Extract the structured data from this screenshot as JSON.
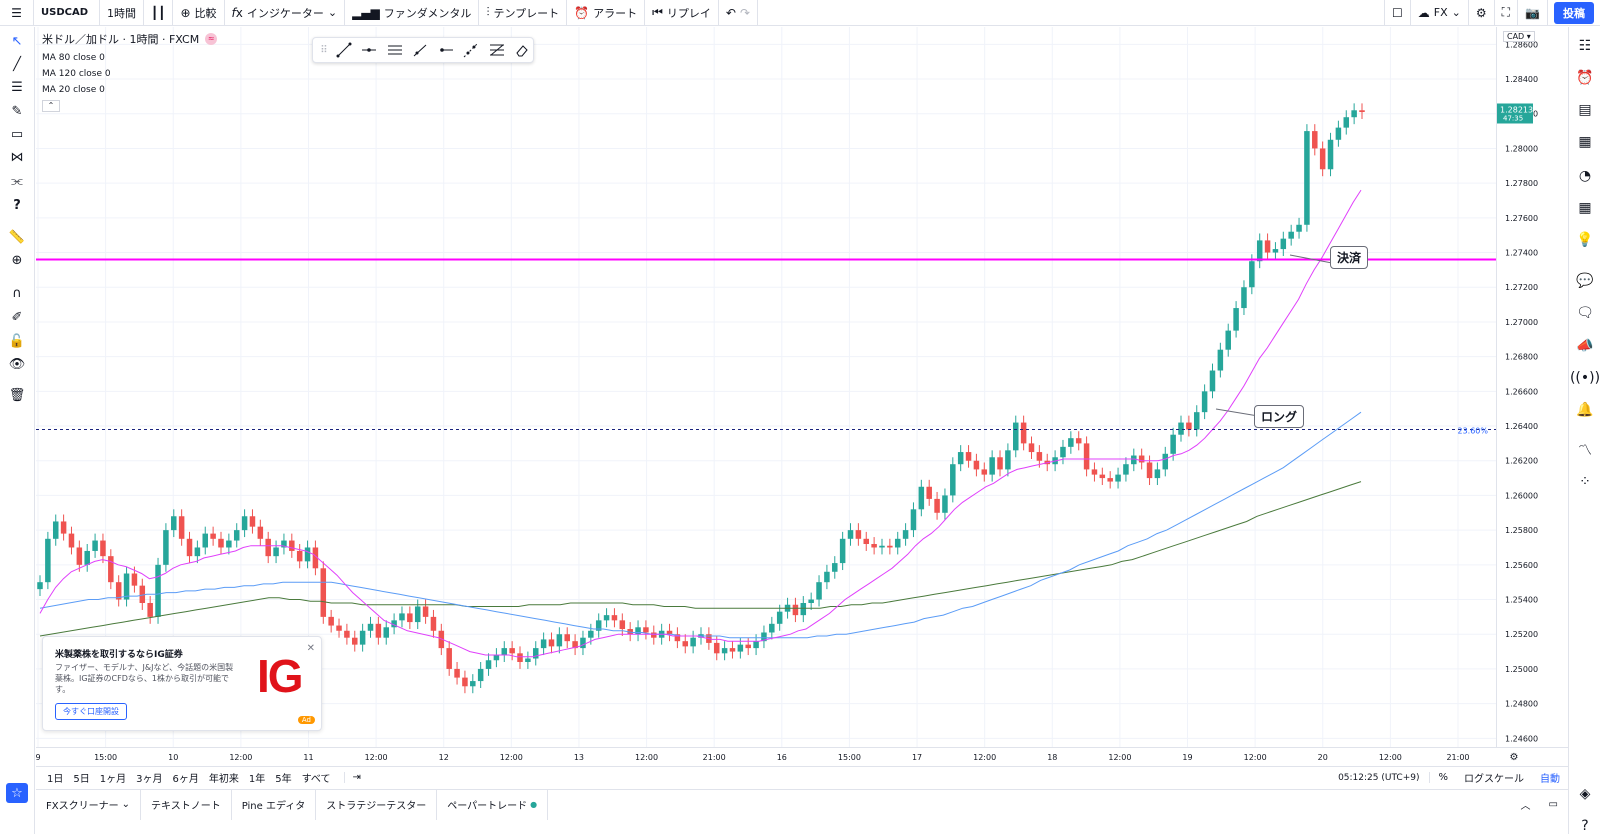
{
  "toolbar": {
    "symbol": "USDCAD",
    "interval": "1時間",
    "compare": "比較",
    "indicators": "インジケーター",
    "fundamentals": "ファンダメンタル",
    "templates": "テンプレート",
    "alerts": "アラート",
    "replay": "リプレイ",
    "layout_label": "FX",
    "publish": "投稿"
  },
  "legend": {
    "title": "米ドル／加ドル · 1時間 · FXCM",
    "ma1": "MA 80 close 0",
    "ma2": "MA 120 close 0",
    "ma3": "MA 20 close 0"
  },
  "price_axis": {
    "currency": "CAD",
    "ticks": [
      "1.28600",
      "1.28400",
      "1.28200",
      "1.28000",
      "1.27800",
      "1.27600",
      "1.27400",
      "1.27200",
      "1.27000",
      "1.26800",
      "1.26600",
      "1.26400",
      "1.26200",
      "1.26000",
      "1.25800",
      "1.25600",
      "1.25400",
      "1.25200",
      "1.25000",
      "1.24800",
      "1.24600"
    ],
    "last_price": "1.28213",
    "countdown": "47:35"
  },
  "time_axis": {
    "ticks": [
      "9",
      "15:00",
      "10",
      "12:00",
      "11",
      "12:00",
      "12",
      "12:00",
      "13",
      "12:00",
      "21:00",
      "16",
      "15:00",
      "17",
      "12:00",
      "18",
      "12:00",
      "19",
      "12:00",
      "20",
      "12:00",
      "21:00"
    ]
  },
  "annotations": {
    "close_label": "決済",
    "long_label": "ロング",
    "fib_label": "23.60%"
  },
  "ad": {
    "title": "米製薬株を取引するならIG証券",
    "body": "ファイザー、モデルナ、J&Jなど、今話題の米国製薬株。IG証券のCFDなら、1株から取引が可能です。",
    "button": "今すぐ口座開設",
    "logo": "IG",
    "badge": "Ad"
  },
  "ranges": [
    "1日",
    "5日",
    "1ヶ月",
    "3ヶ月",
    "6ヶ月",
    "年初来",
    "1年",
    "5年",
    "すべて"
  ],
  "status": {
    "clock": "05:12:25 (UTC+9)",
    "percent": "%",
    "log": "ログスケール",
    "auto": "自動"
  },
  "bottom_tabs": [
    "FXスクリーナー",
    "テキストノート",
    "Pine エディタ",
    "ストラテジーテスター",
    "ペーパートレード"
  ],
  "colors": {
    "up": "#26a69a",
    "down": "#ef5350",
    "ma20": "#e040fb",
    "ma80": "#5b9cf6",
    "ma120": "#4a7a3c",
    "hline": "#ff00ff",
    "accent": "#2962ff"
  },
  "chart_data": {
    "type": "candlestick",
    "ylim": [
      1.2455,
      1.287
    ],
    "hline": 1.2736,
    "fib_level": 1.2638,
    "closes": [
      1.255,
      1.2575,
      1.2585,
      1.2578,
      1.257,
      1.256,
      1.2568,
      1.2574,
      1.2565,
      1.255,
      1.254,
      1.2555,
      1.2548,
      1.2538,
      1.253,
      1.256,
      1.258,
      1.2588,
      1.2575,
      1.2565,
      1.257,
      1.2578,
      1.2575,
      1.257,
      1.2574,
      1.258,
      1.2588,
      1.2582,
      1.2575,
      1.2565,
      1.257,
      1.2574,
      1.2568,
      1.2562,
      1.257,
      1.2558,
      1.253,
      1.2525,
      1.2522,
      1.2518,
      1.2514,
      1.2522,
      1.2526,
      1.2518,
      1.2524,
      1.2528,
      1.2532,
      1.2527,
      1.2536,
      1.253,
      1.2522,
      1.2512,
      1.25,
      1.2495,
      1.249,
      1.2493,
      1.25,
      1.2505,
      1.2508,
      1.2512,
      1.2509,
      1.2504,
      1.2506,
      1.2512,
      1.2517,
      1.2513,
      1.252,
      1.2516,
      1.2512,
      1.2518,
      1.2522,
      1.2528,
      1.2531,
      1.2528,
      1.2523,
      1.252,
      1.2524,
      1.2521,
      1.2518,
      1.2522,
      1.252,
      1.2516,
      1.2513,
      1.2518,
      1.252,
      1.2515,
      1.2509,
      1.2512,
      1.251,
      1.2514,
      1.2512,
      1.2516,
      1.2521,
      1.2526,
      1.2533,
      1.2537,
      1.2531,
      1.2538,
      1.254,
      1.255,
      1.2556,
      1.2561,
      1.2575,
      1.258,
      1.2575,
      1.2572,
      1.257,
      1.2571,
      1.257,
      1.2575,
      1.258,
      1.2592,
      1.2605,
      1.2598,
      1.259,
      1.26,
      1.2618,
      1.2625,
      1.262,
      1.2615,
      1.2612,
      1.2622,
      1.2615,
      1.2626,
      1.2642,
      1.263,
      1.2625,
      1.262,
      1.2618,
      1.2622,
      1.2628,
      1.2633,
      1.263,
      1.2615,
      1.2612,
      1.261,
      1.2608,
      1.2612,
      1.2618,
      1.2623,
      1.2619,
      1.261,
      1.2615,
      1.2624,
      1.2635,
      1.2642,
      1.2638,
      1.2648,
      1.266,
      1.2672,
      1.2684,
      1.2695,
      1.2708,
      1.272,
      1.2735,
      1.2747,
      1.274,
      1.2742,
      1.2748,
      1.2752,
      1.2756,
      1.281,
      1.28,
      1.2788,
      1.2805,
      1.2812,
      1.2818,
      1.2822,
      1.2821
    ],
    "ma20": [
      1.2532,
      1.254,
      1.2547,
      1.2552,
      1.2556,
      1.2558,
      1.256,
      1.2562,
      1.2563,
      1.2562,
      1.256,
      1.2559,
      1.2557,
      1.2555,
      1.2552,
      1.2553,
      1.2555,
      1.2558,
      1.256,
      1.2561,
      1.2562,
      1.2564,
      1.2565,
      1.2566,
      1.2567,
      1.2568,
      1.257,
      1.2571,
      1.2571,
      1.2571,
      1.2571,
      1.2571,
      1.257,
      1.2569,
      1.2568,
      1.2566,
      1.2562,
      1.2558,
      1.2554,
      1.2549,
      1.2544,
      1.254,
      1.2536,
      1.2532,
      1.2528,
      1.2526,
      1.2524,
      1.2522,
      1.2521,
      1.252,
      1.2519,
      1.2518,
      1.2516,
      1.2514,
      1.2512,
      1.251,
      1.2509,
      1.2508,
      1.2508,
      1.2508,
      1.2508,
      1.2507,
      1.2507,
      1.2507,
      1.2508,
      1.2509,
      1.251,
      1.2511,
      1.2512,
      1.2513,
      1.2515,
      1.2517,
      1.2518,
      1.2519,
      1.252,
      1.252,
      1.252,
      1.252,
      1.252,
      1.252,
      1.252,
      1.2519,
      1.2519,
      1.2519,
      1.2519,
      1.2518,
      1.2517,
      1.2517,
      1.2516,
      1.2516,
      1.2516,
      1.2516,
      1.2516,
      1.2517,
      1.2518,
      1.2519,
      1.252,
      1.2522,
      1.2523,
      1.2526,
      1.2529,
      1.2532,
      1.2536,
      1.254,
      1.2543,
      1.2546,
      1.2549,
      1.2552,
      1.2555,
      1.2558,
      1.2562,
      1.2566,
      1.2571,
      1.2575,
      1.2578,
      1.2582,
      1.2587,
      1.2592,
      1.2596,
      1.2599,
      1.2602,
      1.2605,
      1.2607,
      1.261,
      1.2613,
      1.2615,
      1.2616,
      1.2617,
      1.2618,
      1.2619,
      1.262,
      1.2621,
      1.2621,
      1.2621,
      1.2621,
      1.2621,
      1.2621,
      1.2621,
      1.2621,
      1.2621,
      1.2621,
      1.262,
      1.262,
      1.262,
      1.2621,
      1.2623,
      1.2624,
      1.2626,
      1.2629,
      1.2633,
      1.2638,
      1.2643,
      1.2649,
      1.2656,
      1.2663,
      1.2671,
      1.2679,
      1.2685,
      1.2692,
      1.2699,
      1.2706,
      1.2713,
      1.2722,
      1.273,
      1.2737,
      1.2745,
      1.2753,
      1.2761,
      1.2769,
      1.2776
    ],
    "ma80": [
      1.2535,
      1.2536,
      1.2537,
      1.2538,
      1.2539,
      1.254,
      1.254,
      1.2541,
      1.2541,
      1.2542,
      1.2542,
      1.2543,
      1.2543,
      1.2544,
      1.2544,
      1.2545,
      1.2545,
      1.2546,
      1.2546,
      1.2547,
      1.2547,
      1.2548,
      1.2548,
      1.2549,
      1.2549,
      1.255,
      1.255,
      1.255,
      1.255,
      1.255,
      1.255,
      1.2549,
      1.2548,
      1.2547,
      1.2546,
      1.2545,
      1.2544,
      1.2543,
      1.2542,
      1.2541,
      1.254,
      1.2539,
      1.2538,
      1.2537,
      1.2536,
      1.2535,
      1.2534,
      1.2533,
      1.2532,
      1.2531,
      1.253,
      1.2529,
      1.2528,
      1.2527,
      1.2526,
      1.2525,
      1.2524,
      1.2523,
      1.2523,
      1.2522,
      1.2522,
      1.2521,
      1.2521,
      1.252,
      1.252,
      1.252,
      1.2519,
      1.2519,
      1.2519,
      1.2519,
      1.2519,
      1.2518,
      1.2518,
      1.2518,
      1.2518,
      1.2518,
      1.2518,
      1.2518,
      1.2518,
      1.2518,
      1.2519,
      1.2519,
      1.252,
      1.252,
      1.2521,
      1.2522,
      1.2523,
      1.2524,
      1.2525,
      1.2526,
      1.2527,
      1.2529,
      1.253,
      1.2531,
      1.2533,
      1.2535,
      1.2536,
      1.2538,
      1.254,
      1.2542,
      1.2544,
      1.2546,
      1.2548,
      1.2551,
      1.2553,
      1.2555,
      1.2557,
      1.256,
      1.2562,
      1.2564,
      1.2566,
      1.2568,
      1.2571,
      1.2573,
      1.2575,
      1.2578,
      1.258,
      1.2583,
      1.2586,
      1.2589,
      1.2592,
      1.2595,
      1.2598,
      1.2601,
      1.2604,
      1.2607,
      1.261,
      1.2613,
      1.2616,
      1.262,
      1.2624,
      1.2628,
      1.2632,
      1.2636,
      1.264,
      1.2644,
      1.2648
    ],
    "ma120": [
      1.2519,
      1.252,
      1.2521,
      1.2522,
      1.2523,
      1.2524,
      1.2525,
      1.2526,
      1.2527,
      1.2528,
      1.2529,
      1.253,
      1.2531,
      1.2532,
      1.2533,
      1.2534,
      1.2535,
      1.2536,
      1.2537,
      1.2538,
      1.2539,
      1.254,
      1.2541,
      1.2541,
      1.254,
      1.254,
      1.2539,
      1.2539,
      1.2538,
      1.2538,
      1.2538,
      1.2537,
      1.2537,
      1.2537,
      1.2537,
      1.2537,
      1.2537,
      1.2537,
      1.2537,
      1.2537,
      1.2537,
      1.2536,
      1.2536,
      1.2536,
      1.2536,
      1.2536,
      1.2536,
      1.2537,
      1.2537,
      1.2537,
      1.2537,
      1.2538,
      1.2538,
      1.2538,
      1.2538,
      1.2538,
      1.2538,
      1.2537,
      1.2537,
      1.2537,
      1.2536,
      1.2536,
      1.2536,
      1.2535,
      1.2535,
      1.2535,
      1.2535,
      1.2535,
      1.2535,
      1.2535,
      1.2535,
      1.2535,
      1.2535,
      1.2535,
      1.2535,
      1.2535,
      1.2536,
      1.2536,
      1.2537,
      1.2537,
      1.2538,
      1.2538,
      1.2539,
      1.254,
      1.2541,
      1.2542,
      1.2543,
      1.2544,
      1.2545,
      1.2546,
      1.2547,
      1.2548,
      1.2549,
      1.255,
      1.2551,
      1.2552,
      1.2553,
      1.2554,
      1.2555,
      1.2556,
      1.2557,
      1.2558,
      1.2559,
      1.256,
      1.2562,
      1.2563,
      1.2565,
      1.2567,
      1.2569,
      1.2571,
      1.2573,
      1.2575,
      1.2577,
      1.2579,
      1.2581,
      1.2583,
      1.2585,
      1.2588,
      1.259,
      1.2592,
      1.2594,
      1.2596,
      1.2598,
      1.26,
      1.2602,
      1.2604,
      1.2606,
      1.2608
    ]
  }
}
